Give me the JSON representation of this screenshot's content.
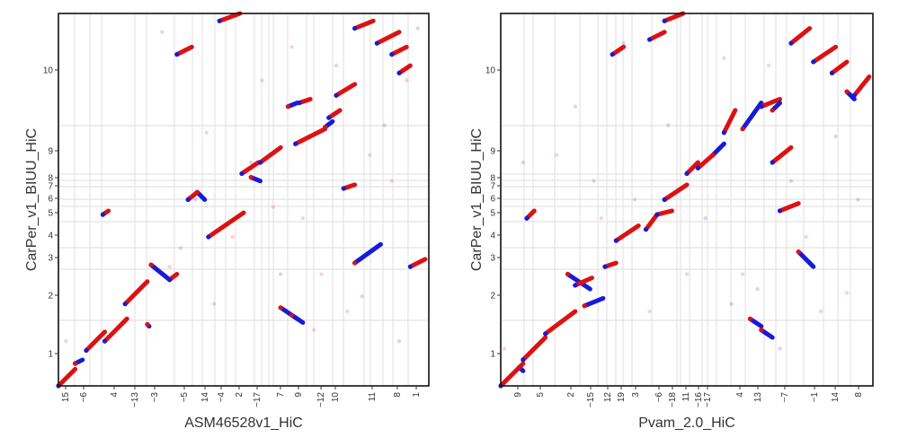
{
  "colors": {
    "forward": "#dd1111",
    "reverse": "#1a1ad6",
    "grid": "#e4e4e4",
    "frame": "#111111"
  },
  "chart_data": [
    {
      "type": "scatter",
      "title": "",
      "xlabel": "ASM46528v1_HiC",
      "ylabel": "CarPer_v1_BIUU_HiC",
      "x_ticks": [
        "15",
        "−6",
        "4",
        "−13",
        "−3",
        "−5",
        "14",
        "−4",
        "2",
        "−17",
        "7",
        "9",
        "−12",
        "10",
        "11",
        "8",
        "1"
      ],
      "y_ticks": [
        "1",
        "2",
        "3",
        "4",
        "5",
        "6",
        "7",
        "8",
        "9",
        "10"
      ],
      "xlim": [
        0,
        1
      ],
      "ylim": [
        0,
        1
      ],
      "grid": true,
      "legend": "none",
      "series": [
        {
          "values": [
            [
              0.0,
              0.0,
              0.045,
              0.045,
              "f"
            ],
            [
              0.045,
              0.06,
              0.065,
              0.07,
              "r"
            ],
            [
              0.075,
              0.095,
              0.125,
              0.145,
              "f"
            ],
            [
              0.12,
              0.46,
              0.135,
              0.47,
              "f"
            ],
            [
              0.125,
              0.12,
              0.185,
              0.18,
              "f"
            ],
            [
              0.18,
              0.22,
              0.24,
              0.28,
              "f"
            ],
            [
              0.24,
              0.165,
              0.245,
              0.16,
              "r"
            ],
            [
              0.25,
              0.325,
              0.3,
              0.285,
              "r"
            ],
            [
              0.3,
              0.285,
              0.32,
              0.3,
              "f"
            ],
            [
              0.32,
              0.89,
              0.36,
              0.91,
              "f"
            ],
            [
              0.35,
              0.5,
              0.375,
              0.52,
              "f"
            ],
            [
              0.375,
              0.52,
              0.395,
              0.5,
              "r"
            ],
            [
              0.405,
              0.4,
              0.5,
              0.465,
              "f"
            ],
            [
              0.435,
              0.98,
              0.49,
              1.0,
              "f"
            ],
            [
              0.495,
              0.57,
              0.54,
              0.6,
              "f"
            ],
            [
              0.52,
              0.56,
              0.545,
              0.55,
              "r"
            ],
            [
              0.545,
              0.6,
              0.6,
              0.64,
              "f"
            ],
            [
              0.6,
              0.21,
              0.645,
              0.18,
              "r"
            ],
            [
              0.63,
              0.19,
              0.66,
              0.17,
              "r"
            ],
            [
              0.62,
              0.75,
              0.645,
              0.76,
              "r"
            ],
            [
              0.65,
              0.76,
              0.68,
              0.77,
              "f"
            ],
            [
              0.64,
              0.65,
              0.72,
              0.69,
              "f"
            ],
            [
              0.72,
              0.695,
              0.74,
              0.71,
              "r"
            ],
            [
              0.73,
              0.72,
              0.76,
              0.74,
              "f"
            ],
            [
              0.75,
              0.78,
              0.8,
              0.81,
              "f"
            ],
            [
              0.77,
              0.53,
              0.8,
              0.54,
              "f"
            ],
            [
              0.8,
              0.33,
              0.87,
              0.38,
              "r"
            ],
            [
              0.8,
              0.96,
              0.85,
              0.98,
              "f"
            ],
            [
              0.86,
              0.92,
              0.92,
              0.95,
              "f"
            ],
            [
              0.9,
              0.89,
              0.94,
              0.91,
              "f"
            ],
            [
              0.92,
              0.84,
              0.95,
              0.86,
              "f"
            ],
            [
              0.95,
              0.32,
              0.99,
              0.34,
              "f"
            ]
          ]
        }
      ]
    },
    {
      "type": "scatter",
      "title": "",
      "xlabel": "Pvam_2.0_HiC",
      "ylabel": "CarPer_v1_BIUU_HiC",
      "x_ticks": [
        "9",
        "5",
        "2",
        "−15",
        "12",
        "19",
        "3",
        "−6",
        "−18",
        "11",
        "−16",
        "−17",
        "4",
        "13",
        "−7",
        "−1",
        "14",
        "8"
      ],
      "y_ticks": [
        "1",
        "2",
        "3",
        "4",
        "5",
        "6",
        "7",
        "8",
        "9",
        "10"
      ],
      "xlim": [
        0,
        1
      ],
      "ylim": [
        0,
        1
      ],
      "grid": true,
      "legend": "none",
      "series": [
        {
          "values": [
            [
              0.0,
              0.0,
              0.06,
              0.06,
              "f"
            ],
            [
              0.05,
              0.05,
              0.06,
              0.04,
              "r"
            ],
            [
              0.06,
              0.07,
              0.12,
              0.13,
              "f"
            ],
            [
              0.07,
              0.45,
              0.09,
              0.47,
              "f"
            ],
            [
              0.12,
              0.14,
              0.2,
              0.2,
              "f"
            ],
            [
              0.18,
              0.3,
              0.24,
              0.26,
              "r"
            ],
            [
              0.2,
              0.27,
              0.245,
              0.29,
              "f"
            ],
            [
              0.225,
              0.215,
              0.275,
              0.235,
              "r"
            ],
            [
              0.28,
              0.32,
              0.31,
              0.33,
              "f"
            ],
            [
              0.31,
              0.39,
              0.37,
              0.43,
              "f"
            ],
            [
              0.3,
              0.89,
              0.33,
              0.91,
              "f"
            ],
            [
              0.4,
              0.93,
              0.44,
              0.95,
              "f"
            ],
            [
              0.39,
              0.42,
              0.42,
              0.46,
              "f"
            ],
            [
              0.44,
              0.98,
              0.49,
              1.0,
              "f"
            ],
            [
              0.42,
              0.46,
              0.46,
              0.47,
              "f"
            ],
            [
              0.44,
              0.5,
              0.5,
              0.54,
              "f"
            ],
            [
              0.5,
              0.57,
              0.53,
              0.6,
              "f"
            ],
            [
              0.53,
              0.585,
              0.57,
              0.62,
              "f"
            ],
            [
              0.57,
              0.62,
              0.6,
              0.65,
              "r"
            ],
            [
              0.6,
              0.68,
              0.63,
              0.74,
              "f"
            ],
            [
              0.65,
              0.69,
              0.7,
              0.76,
              "r"
            ],
            [
              0.7,
              0.75,
              0.75,
              0.77,
              "f"
            ],
            [
              0.73,
              0.74,
              0.75,
              0.76,
              "r"
            ],
            [
              0.67,
              0.18,
              0.7,
              0.16,
              "r"
            ],
            [
              0.7,
              0.15,
              0.73,
              0.13,
              "r"
            ],
            [
              0.73,
              0.6,
              0.78,
              0.64,
              "f"
            ],
            [
              0.75,
              0.47,
              0.8,
              0.49,
              "f"
            ],
            [
              0.78,
              0.92,
              0.83,
              0.96,
              "f"
            ],
            [
              0.8,
              0.36,
              0.84,
              0.32,
              "r"
            ],
            [
              0.84,
              0.87,
              0.9,
              0.91,
              "f"
            ],
            [
              0.89,
              0.84,
              0.93,
              0.87,
              "f"
            ],
            [
              0.93,
              0.79,
              0.95,
              0.77,
              "r"
            ],
            [
              0.95,
              0.78,
              0.99,
              0.83,
              "f"
            ]
          ]
        }
      ]
    }
  ]
}
